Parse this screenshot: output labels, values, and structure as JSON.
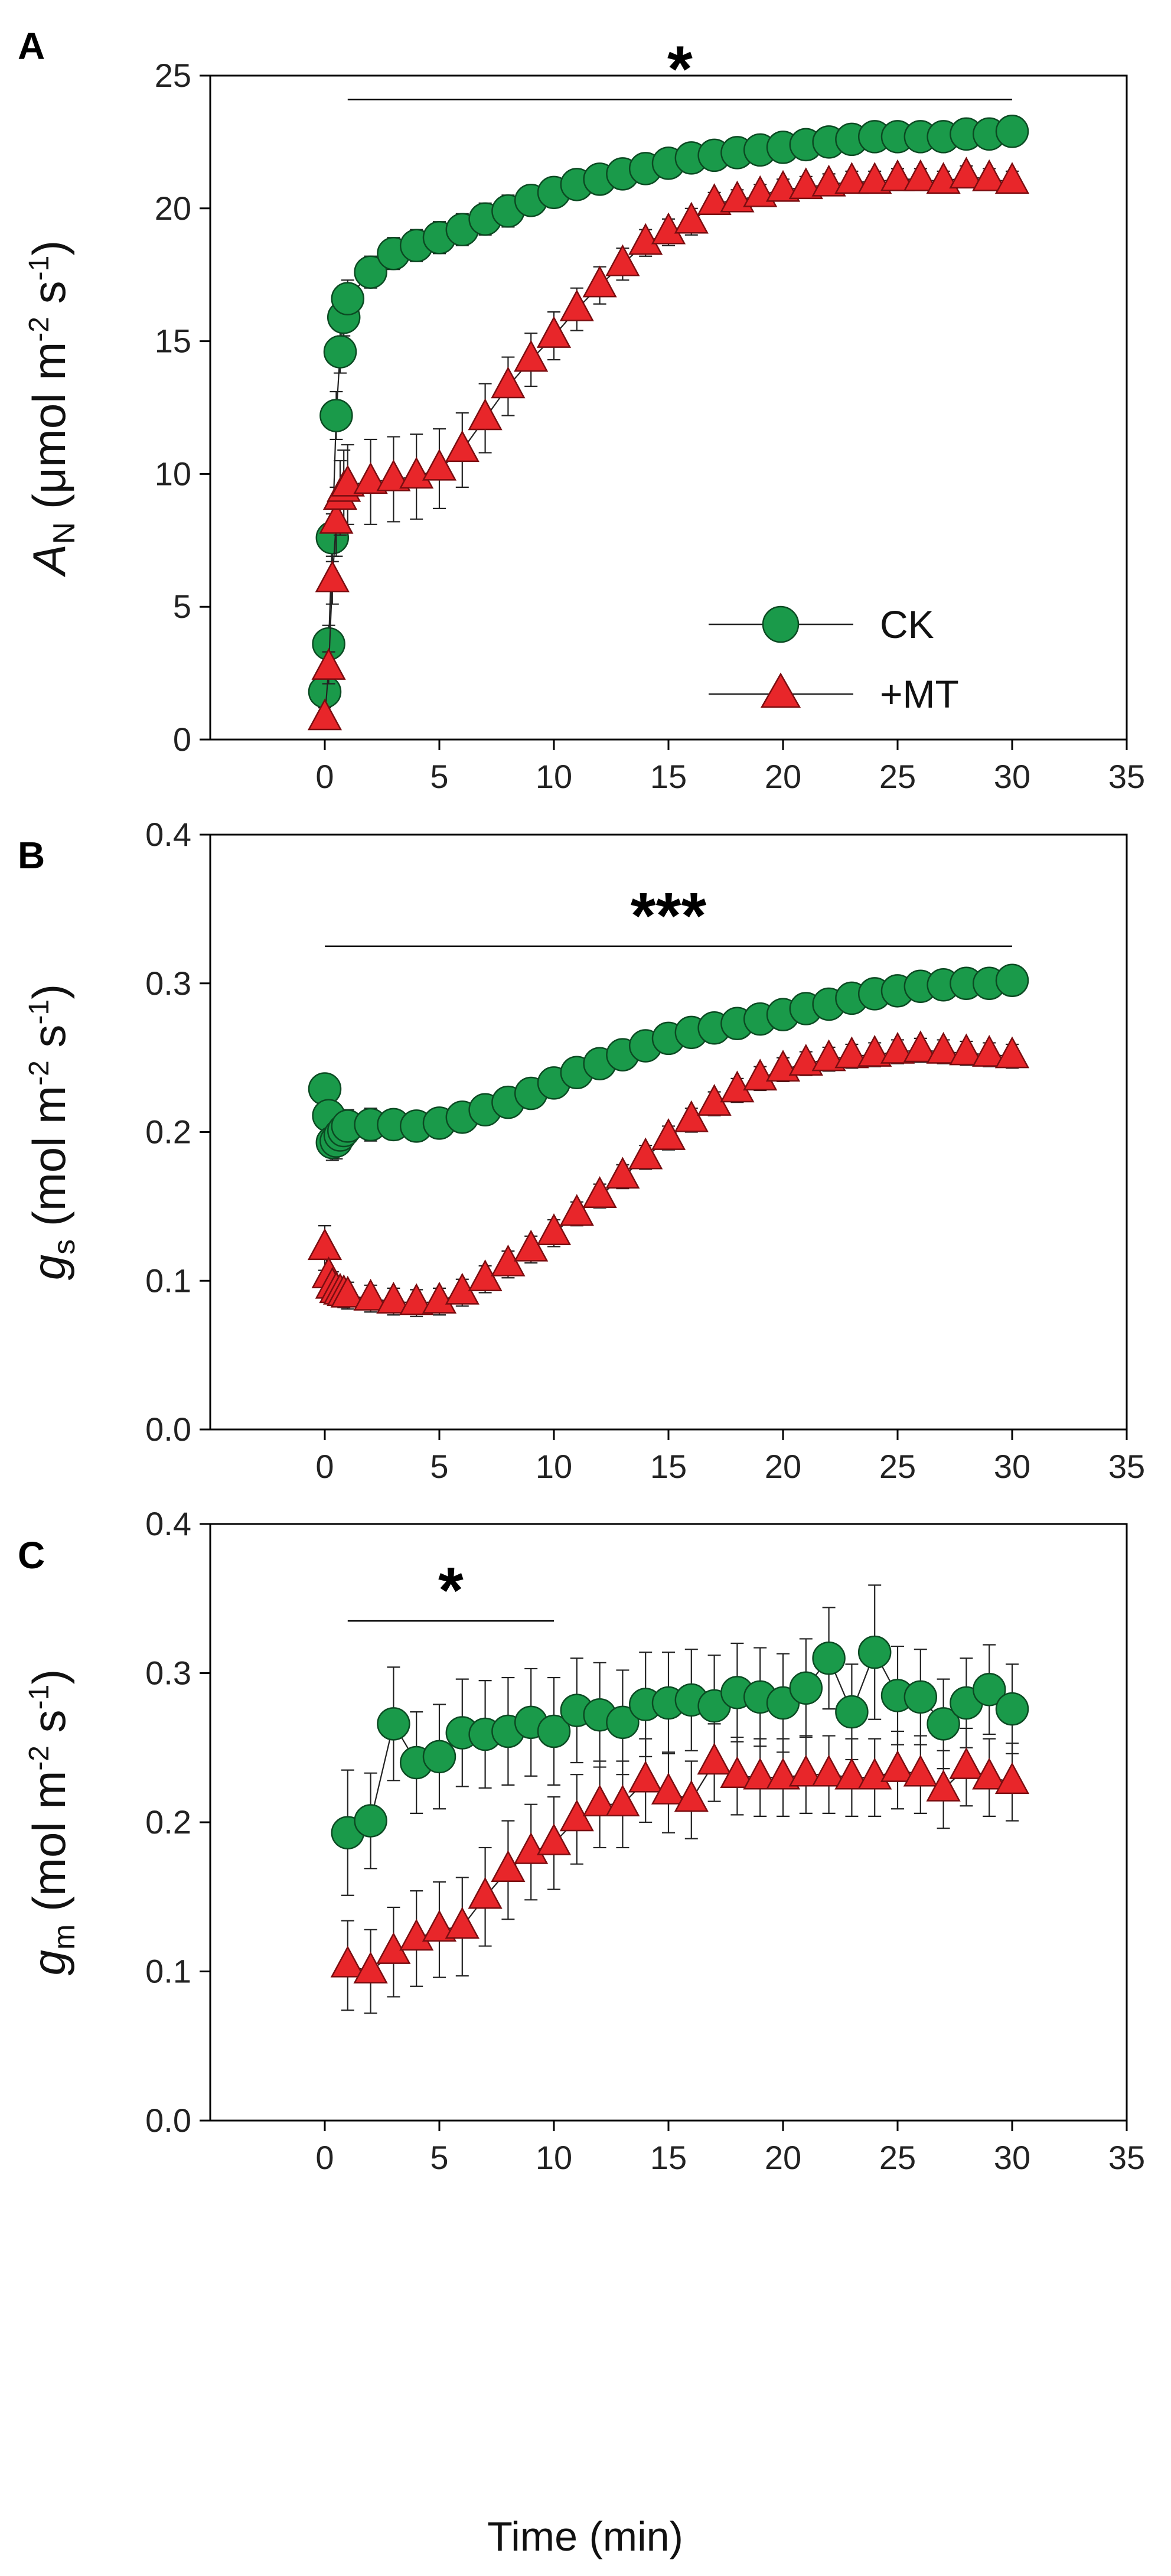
{
  "figure": {
    "x_title": "Time (min)",
    "series_styles": [
      {
        "name": "CK",
        "color": "#1a9a4a",
        "edge": "#0b4a22",
        "marker": "circle"
      },
      {
        "name": "+MT",
        "color": "#e8262a",
        "edge": "#7a0d10",
        "marker": "triangle"
      }
    ],
    "legend": {
      "items": [
        "CK",
        "+MT"
      ],
      "placement": "bottom-right of panel A"
    }
  },
  "chart_data": [
    {
      "panel": "A",
      "type": "scatter",
      "title": "",
      "xlabel": "Time (min)",
      "ylabel_main": "A",
      "ylabel_sub": "N",
      "ylabel_units_pre": " (μmol m",
      "ylabel_units_sup1": "-2",
      "ylabel_units_mid": " s",
      "ylabel_units_sup2": "-1",
      "ylabel_units_post": ")",
      "xlim": [
        -5,
        35
      ],
      "ylim": [
        0,
        25
      ],
      "xticks": [
        0,
        5,
        10,
        15,
        20,
        25,
        30,
        35
      ],
      "yticks": [
        0,
        5,
        10,
        15,
        20,
        25
      ],
      "ytick_labels": [
        "0",
        "5",
        "10",
        "15",
        "20",
        "25"
      ],
      "significance": {
        "label": "*",
        "x_start": 1,
        "x_end": 30,
        "y": 24.1
      },
      "series": [
        {
          "name": "CK",
          "x": [
            0,
            0.17,
            0.33,
            0.5,
            0.67,
            0.83,
            1,
            2,
            3,
            4,
            5,
            6,
            7,
            8,
            9,
            10,
            11,
            12,
            13,
            14,
            15,
            16,
            17,
            18,
            19,
            20,
            21,
            22,
            23,
            24,
            25,
            26,
            27,
            28,
            29,
            30
          ],
          "values": [
            1.8,
            3.6,
            7.6,
            12.2,
            14.6,
            15.9,
            16.6,
            17.6,
            18.3,
            18.6,
            18.9,
            19.2,
            19.6,
            19.9,
            20.3,
            20.6,
            20.9,
            21.1,
            21.3,
            21.5,
            21.7,
            21.9,
            22.0,
            22.1,
            22.2,
            22.3,
            22.4,
            22.5,
            22.6,
            22.7,
            22.7,
            22.7,
            22.7,
            22.8,
            22.8,
            22.9
          ],
          "errors": [
            0.6,
            0.7,
            0.9,
            0.9,
            0.8,
            0.7,
            0.7,
            0.6,
            0.6,
            0.6,
            0.6,
            0.6,
            0.6,
            0.6,
            0.5,
            0.5,
            0.5,
            0.5,
            0.5,
            0.5,
            0.5,
            0.5,
            0.4,
            0.4,
            0.4,
            0.4,
            0.4,
            0.4,
            0.4,
            0.4,
            0.4,
            0.4,
            0.4,
            0.4,
            0.4,
            0.4
          ]
        },
        {
          "name": "+MT",
          "x": [
            0,
            0.17,
            0.33,
            0.5,
            0.67,
            0.83,
            1,
            2,
            3,
            4,
            5,
            6,
            7,
            8,
            9,
            10,
            11,
            12,
            13,
            14,
            15,
            16,
            17,
            18,
            19,
            20,
            21,
            22,
            23,
            24,
            25,
            26,
            27,
            28,
            29,
            30
          ],
          "values": [
            0.8,
            2.7,
            6.0,
            8.2,
            9.1,
            9.4,
            9.6,
            9.7,
            9.8,
            9.9,
            10.2,
            10.9,
            12.1,
            13.3,
            14.3,
            15.2,
            16.2,
            17.1,
            17.9,
            18.7,
            19.1,
            19.5,
            20.2,
            20.3,
            20.5,
            20.7,
            20.8,
            20.9,
            21.0,
            21.0,
            21.1,
            21.1,
            21.0,
            21.2,
            21.1,
            21.0
          ],
          "errors": [
            0.4,
            0.6,
            0.9,
            1.3,
            1.4,
            1.5,
            1.5,
            1.6,
            1.6,
            1.6,
            1.5,
            1.4,
            1.3,
            1.1,
            1.0,
            0.9,
            0.8,
            0.7,
            0.6,
            0.5,
            0.5,
            0.5,
            0.4,
            0.4,
            0.4,
            0.4,
            0.4,
            0.4,
            0.4,
            0.4,
            0.4,
            0.4,
            0.4,
            0.4,
            0.4,
            0.4
          ]
        }
      ]
    },
    {
      "panel": "B",
      "type": "scatter",
      "title": "",
      "xlabel": "Time (min)",
      "ylabel_main": "g",
      "ylabel_sub": "s",
      "ylabel_units_pre": " (mol m",
      "ylabel_units_sup1": "-2",
      "ylabel_units_mid": " s",
      "ylabel_units_sup2": "-1",
      "ylabel_units_post": ")",
      "xlim": [
        -5,
        35
      ],
      "ylim": [
        0,
        0.4
      ],
      "xticks": [
        0,
        5,
        10,
        15,
        20,
        25,
        30,
        35
      ],
      "yticks": [
        0,
        0.1,
        0.2,
        0.3,
        0.4
      ],
      "ytick_labels": [
        "0.0",
        "0.1",
        "0.2",
        "0.3",
        "0.4"
      ],
      "significance": {
        "label": "***",
        "x_start": 0,
        "x_end": 30,
        "y": 0.325
      },
      "series": [
        {
          "name": "CK",
          "x": [
            0,
            0.17,
            0.33,
            0.5,
            0.67,
            0.83,
            1,
            2,
            3,
            4,
            5,
            6,
            7,
            8,
            9,
            10,
            11,
            12,
            13,
            14,
            15,
            16,
            17,
            18,
            19,
            20,
            21,
            22,
            23,
            24,
            25,
            26,
            27,
            28,
            29,
            30
          ],
          "values": [
            0.229,
            0.211,
            0.193,
            0.194,
            0.198,
            0.201,
            0.204,
            0.205,
            0.205,
            0.204,
            0.206,
            0.21,
            0.215,
            0.22,
            0.226,
            0.233,
            0.24,
            0.246,
            0.252,
            0.258,
            0.263,
            0.267,
            0.27,
            0.273,
            0.276,
            0.279,
            0.283,
            0.286,
            0.29,
            0.293,
            0.295,
            0.298,
            0.299,
            0.3,
            0.3,
            0.302
          ],
          "errors": [
            0.008,
            0.01,
            0.012,
            0.012,
            0.012,
            0.012,
            0.011,
            0.011,
            0.01,
            0.01,
            0.01,
            0.009,
            0.009,
            0.009,
            0.009,
            0.008,
            0.008,
            0.008,
            0.008,
            0.008,
            0.007,
            0.007,
            0.007,
            0.007,
            0.007,
            0.007,
            0.007,
            0.007,
            0.007,
            0.007,
            0.007,
            0.007,
            0.007,
            0.007,
            0.007,
            0.007
          ]
        },
        {
          "name": "+MT",
          "x": [
            0,
            0.17,
            0.33,
            0.5,
            0.67,
            0.83,
            1,
            2,
            3,
            4,
            5,
            6,
            7,
            8,
            9,
            10,
            11,
            12,
            13,
            14,
            15,
            16,
            17,
            18,
            19,
            20,
            21,
            22,
            23,
            24,
            25,
            26,
            27,
            28,
            29,
            30
          ],
          "values": [
            0.122,
            0.103,
            0.096,
            0.093,
            0.092,
            0.091,
            0.09,
            0.088,
            0.086,
            0.085,
            0.086,
            0.092,
            0.101,
            0.111,
            0.121,
            0.132,
            0.145,
            0.157,
            0.17,
            0.183,
            0.196,
            0.208,
            0.219,
            0.228,
            0.236,
            0.242,
            0.246,
            0.249,
            0.251,
            0.252,
            0.254,
            0.255,
            0.254,
            0.253,
            0.252,
            0.251
          ],
          "errors": [
            0.015,
            0.012,
            0.01,
            0.009,
            0.009,
            0.009,
            0.009,
            0.009,
            0.009,
            0.009,
            0.009,
            0.009,
            0.009,
            0.009,
            0.009,
            0.009,
            0.008,
            0.008,
            0.008,
            0.008,
            0.008,
            0.008,
            0.008,
            0.008,
            0.008,
            0.008,
            0.008,
            0.008,
            0.008,
            0.008,
            0.008,
            0.008,
            0.008,
            0.008,
            0.008,
            0.008
          ]
        }
      ]
    },
    {
      "panel": "C",
      "type": "scatter",
      "title": "",
      "xlabel": "Time (min)",
      "ylabel_main": "g",
      "ylabel_sub": "m",
      "ylabel_units_pre": " (mol m",
      "ylabel_units_sup1": "-2",
      "ylabel_units_mid": " s",
      "ylabel_units_sup2": "-1",
      "ylabel_units_post": ")",
      "xlim": [
        -5,
        35
      ],
      "ylim": [
        0,
        0.4
      ],
      "xticks": [
        0,
        5,
        10,
        15,
        20,
        25,
        30,
        35
      ],
      "yticks": [
        0,
        0.1,
        0.2,
        0.3,
        0.4
      ],
      "ytick_labels": [
        "0.0",
        "0.1",
        "0.2",
        "0.3",
        "0.4"
      ],
      "significance": {
        "label": "*",
        "x_start": 1,
        "x_end": 10,
        "y": 0.335
      },
      "series": [
        {
          "name": "CK",
          "x": [
            1,
            2,
            3,
            4,
            5,
            6,
            7,
            8,
            9,
            10,
            11,
            12,
            13,
            14,
            15,
            16,
            17,
            18,
            19,
            20,
            21,
            22,
            23,
            24,
            25,
            26,
            27,
            28,
            29,
            30
          ],
          "values": [
            0.193,
            0.201,
            0.266,
            0.24,
            0.244,
            0.26,
            0.259,
            0.261,
            0.267,
            0.261,
            0.275,
            0.272,
            0.267,
            0.279,
            0.28,
            0.282,
            0.278,
            0.287,
            0.284,
            0.28,
            0.29,
            0.31,
            0.274,
            0.314,
            0.285,
            0.284,
            0.266,
            0.28,
            0.289,
            0.276
          ],
          "errors": [
            0.042,
            0.032,
            0.038,
            0.034,
            0.035,
            0.036,
            0.036,
            0.036,
            0.036,
            0.036,
            0.035,
            0.035,
            0.035,
            0.035,
            0.034,
            0.034,
            0.034,
            0.033,
            0.033,
            0.033,
            0.033,
            0.034,
            0.032,
            0.045,
            0.033,
            0.032,
            0.03,
            0.03,
            0.03,
            0.03
          ]
        },
        {
          "name": "+MT",
          "x": [
            1,
            2,
            3,
            4,
            5,
            6,
            7,
            8,
            9,
            10,
            11,
            12,
            13,
            14,
            15,
            16,
            17,
            18,
            19,
            20,
            21,
            22,
            23,
            24,
            25,
            26,
            27,
            28,
            29,
            30
          ],
          "values": [
            0.104,
            0.1,
            0.113,
            0.122,
            0.128,
            0.13,
            0.15,
            0.168,
            0.18,
            0.186,
            0.202,
            0.212,
            0.212,
            0.228,
            0.22,
            0.215,
            0.24,
            0.231,
            0.23,
            0.23,
            0.232,
            0.232,
            0.23,
            0.23,
            0.235,
            0.232,
            0.222,
            0.237,
            0.23,
            0.227
          ],
          "errors": [
            0.03,
            0.028,
            0.03,
            0.032,
            0.032,
            0.033,
            0.033,
            0.033,
            0.032,
            0.031,
            0.03,
            0.029,
            0.029,
            0.028,
            0.027,
            0.026,
            0.026,
            0.026,
            0.026,
            0.026,
            0.026,
            0.026,
            0.026,
            0.026,
            0.026,
            0.026,
            0.026,
            0.026,
            0.026,
            0.026
          ]
        }
      ]
    }
  ]
}
